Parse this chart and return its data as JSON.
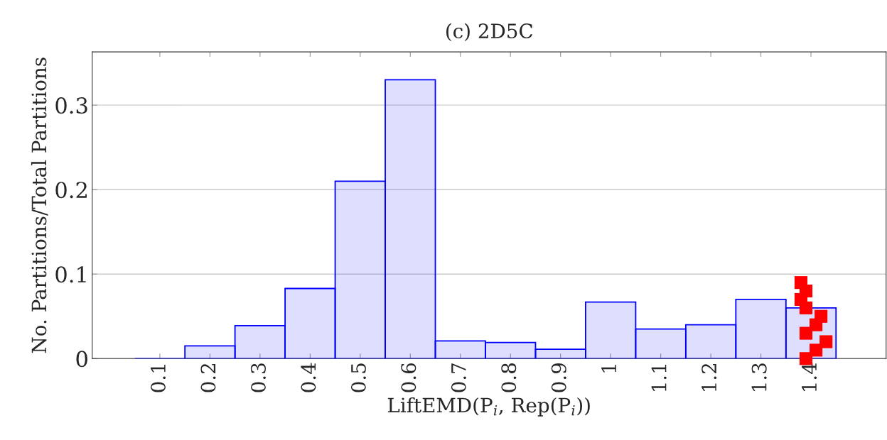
{
  "chart_data": {
    "type": "histogram",
    "title": "(c) 2D5C",
    "xlabel": "LiftEMD(P$_{i}$, Rep(P$_{i}$))",
    "ylabel": "No. Partitions/Total Partitions",
    "bins": [
      0.05,
      0.15,
      0.25,
      0.35,
      0.45,
      0.55,
      0.65,
      0.75,
      0.85,
      0.95,
      1.05,
      1.15,
      1.25,
      1.35,
      1.45
    ],
    "values": [
      0,
      0.015,
      0.039,
      0.083,
      0.21,
      0.33,
      0.021,
      0.019,
      0.011,
      0.067,
      0.035,
      0.04,
      0.07,
      0.06
    ],
    "color": "#0000ff",
    "series": [
      {
        "type": "scatter",
        "x": [
          1.38,
          1.39,
          1.38,
          1.39,
          1.42,
          1.41,
          1.39,
          1.43,
          1.41,
          1.39
        ],
        "values": [
          0.09,
          0.08,
          0.07,
          0.06,
          0.05,
          0.04,
          0.03,
          0.02,
          0.01,
          0
        ],
        "color": "#ff0000",
        "marker": "square"
      }
    ],
    "xlim": [
      -0.035,
      1.55
    ],
    "ylim": [
      0,
      0.363
    ],
    "xticks": [
      0.1,
      0.2,
      0.3,
      0.4,
      0.5,
      0.6,
      0.7,
      0.8,
      0.9,
      1,
      1.1,
      1.2,
      1.3,
      1.4
    ],
    "yticks": [
      0,
      0.1,
      0.2,
      0.3
    ],
    "grid": "y"
  }
}
